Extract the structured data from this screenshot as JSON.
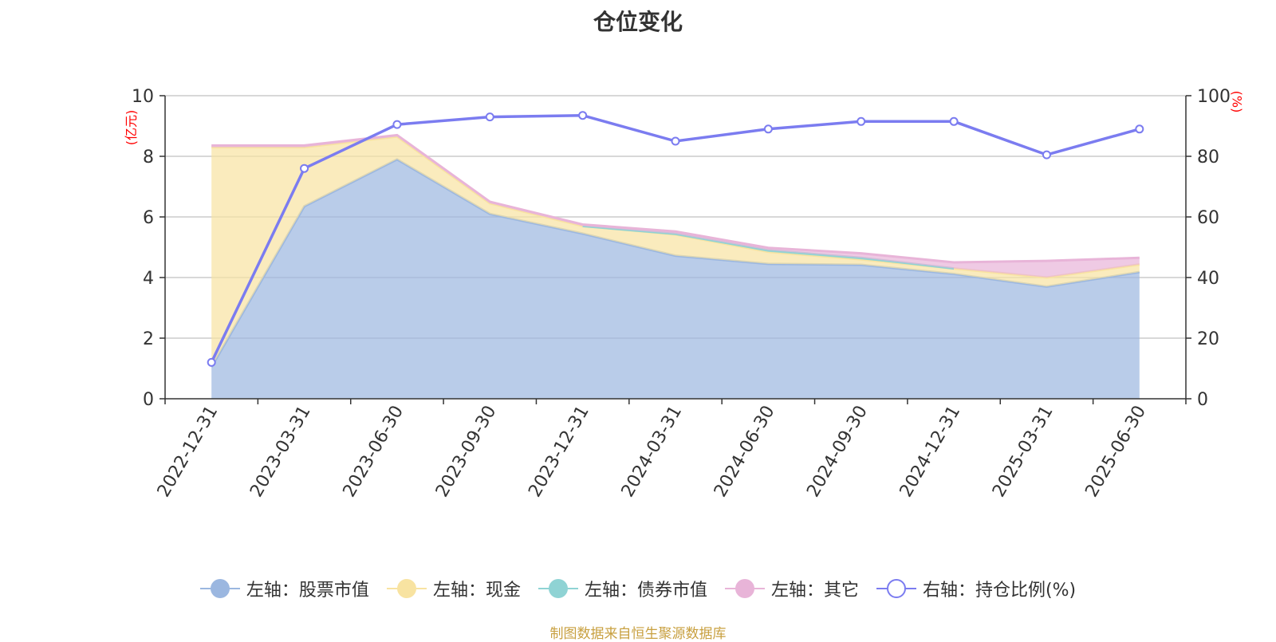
{
  "chart_data": {
    "type": "area",
    "title": "仓位变化",
    "left_unit": "(亿元)",
    "right_unit": "(%)",
    "categories": [
      "2022-12-31",
      "2023-03-31",
      "2023-06-30",
      "2023-09-30",
      "2023-12-31",
      "2024-03-31",
      "2024-06-30",
      "2024-09-30",
      "2024-12-31",
      "2025-03-31",
      "2025-06-30"
    ],
    "left_axis": {
      "min": 0,
      "max": 10,
      "ticks": [
        0,
        2,
        4,
        6,
        8,
        10
      ]
    },
    "right_axis": {
      "min": 0,
      "max": 100,
      "ticks": [
        0,
        20,
        40,
        60,
        80,
        100
      ]
    },
    "stacked": true,
    "grid": true,
    "legend_position": "bottom",
    "series": [
      {
        "name": "左轴：股票市值",
        "axis": "left",
        "color": "#9bb7e0",
        "values": [
          1.05,
          6.35,
          7.9,
          6.1,
          5.45,
          4.72,
          4.45,
          4.42,
          4.12,
          3.7,
          4.18
        ]
      },
      {
        "name": "左轴：现金",
        "axis": "left",
        "color": "#f8e3a1",
        "values": [
          7.25,
          1.95,
          0.75,
          0.35,
          0.25,
          0.7,
          0.4,
          0.18,
          0.18,
          0.3,
          0.25
        ]
      },
      {
        "name": "左轴：债券市值",
        "axis": "left",
        "color": "#8fd3d4",
        "values": [
          0,
          0,
          0,
          0,
          0,
          0.02,
          0.05,
          0.05,
          0,
          0,
          0
        ]
      },
      {
        "name": "左轴：其它",
        "axis": "left",
        "color": "#e8b4d8",
        "values": [
          0.06,
          0.06,
          0.05,
          0.05,
          0.05,
          0.08,
          0.08,
          0.15,
          0.2,
          0.55,
          0.22
        ]
      },
      {
        "name": "右轴：持仓比例(%)",
        "axis": "right",
        "type": "line",
        "color": "#7b7cf0",
        "values": [
          12,
          76,
          90.5,
          93,
          93.5,
          85,
          89,
          91.5,
          91.5,
          80.5,
          89
        ]
      }
    ],
    "source": "制图数据来自恒生聚源数据库"
  }
}
